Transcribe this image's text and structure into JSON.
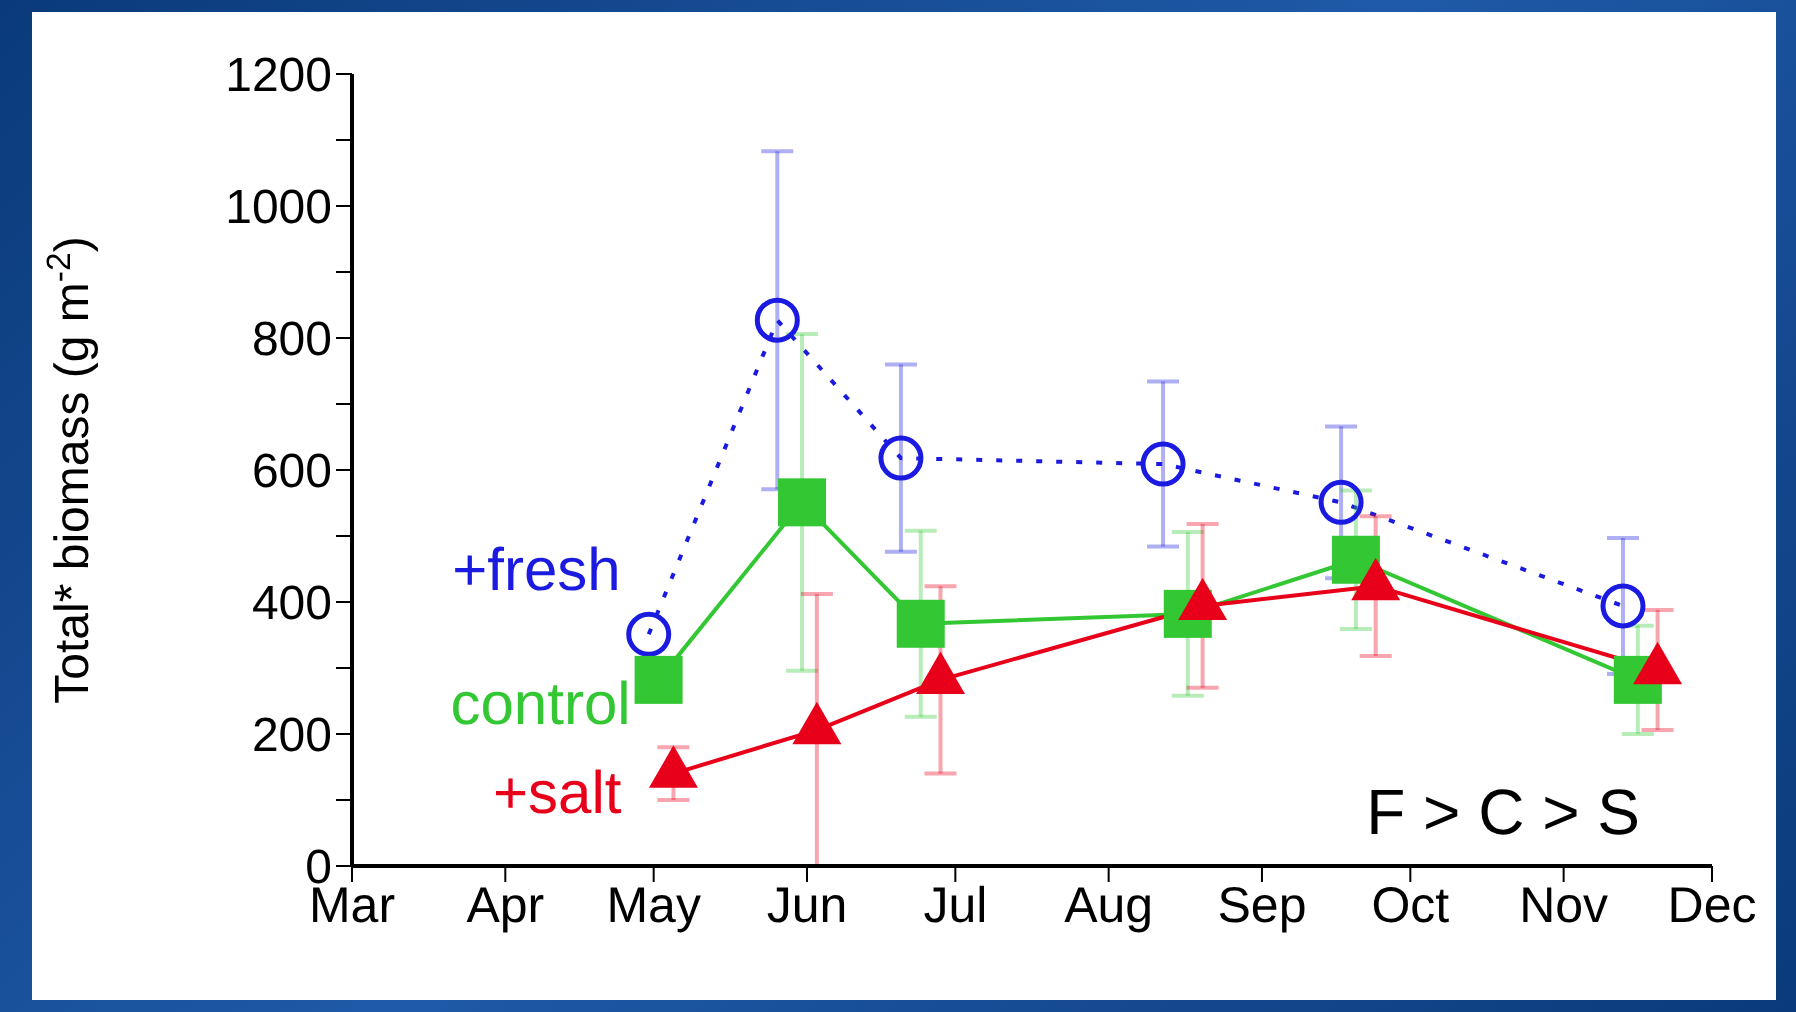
{
  "chart_data": {
    "type": "line",
    "ylabel": "Total* biomass (g m$^{-2}$)",
    "xlim": [
      "--03-01",
      "--12-01"
    ],
    "xticks": [
      {
        "value": "--03-01",
        "label": "Mar"
      },
      {
        "value": "--04-01",
        "label": "Apr"
      },
      {
        "value": "--05-01",
        "label": "May"
      },
      {
        "value": "--06-01",
        "label": "Jun"
      },
      {
        "value": "--07-01",
        "label": "Jul"
      },
      {
        "value": "--08-01",
        "label": "Aug"
      },
      {
        "value": "--09-01",
        "label": "Sep"
      },
      {
        "value": "--10-01",
        "label": "Oct"
      },
      {
        "value": "--11-01",
        "label": "Nov"
      },
      {
        "value": "--12-01",
        "label": "Dec"
      }
    ],
    "ylim": [
      0,
      1200
    ],
    "yticks": [
      0,
      {
        "value": 100,
        "label": null
      },
      200,
      {
        "value": 300,
        "label": null
      },
      400,
      {
        "value": 500,
        "label": null
      },
      600,
      {
        "value": 700,
        "label": null
      },
      800,
      {
        "value": 900,
        "label": null
      },
      1000,
      {
        "value": 1100,
        "label": null
      },
      1200
    ],
    "grid": false,
    "legend": false,
    "series": [
      {
        "name": "+fresh",
        "color": "#1a1ae0",
        "marker": "circle",
        "line_style": "dotted",
        "x": [
          "--04-30",
          "--05-26",
          "--06-20",
          "--08-12",
          "--09-17",
          "--11-13"
        ],
        "values": [
          351,
          827,
          618,
          609,
          551,
          394
        ],
        "errors": [
          null,
          256,
          142,
          125,
          115,
          103
        ]
      },
      {
        "name": "control",
        "color": "#33c833",
        "marker": "square",
        "line_style": "solid",
        "x": [
          "--05-02",
          "--05-31",
          "--06-24",
          "--08-17",
          "--09-20",
          "--11-16"
        ],
        "values": [
          282,
          551,
          367,
          382,
          464,
          282
        ],
        "errors": [
          null,
          255,
          141,
          124,
          105,
          82
        ]
      },
      {
        "name": "+salt",
        "color": "#e8001a",
        "marker": "triangle",
        "line_style": "solid",
        "x": [
          "--05-05",
          "--06-03",
          "--06-28",
          "--08-20",
          "--09-24",
          "--11-20"
        ],
        "values": [
          140,
          206,
          282,
          394,
          424,
          297
        ],
        "errors": [
          40,
          206,
          142,
          124,
          106,
          91
        ]
      }
    ],
    "annotations": [
      "F > C > S"
    ]
  }
}
